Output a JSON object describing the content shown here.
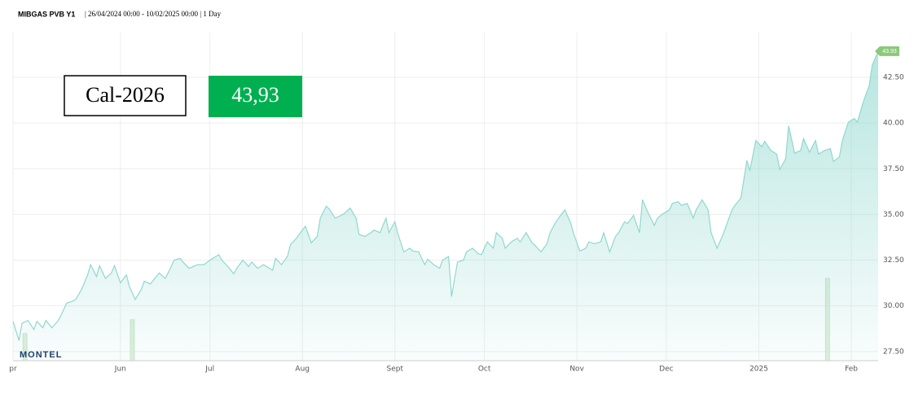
{
  "chart_data": {
    "type": "line",
    "title": "MIBGAS PVB Y1",
    "subtitle": "| 26/04/2024 00:00 - 10/02/2025 00:00 | 1 Day",
    "logo": "MONTEL",
    "product": "Cal-2026",
    "price": "43,93",
    "last_label": "43.93",
    "color": "#8fd8cf",
    "grid": true,
    "xlim": [
      0,
      290
    ],
    "ylim": [
      27.0,
      44.95
    ],
    "xticks": [
      {
        "value": 0,
        "label": "pr"
      },
      {
        "value": 36,
        "label": "Jun"
      },
      {
        "value": 66,
        "label": "Jul"
      },
      {
        "value": 97,
        "label": "Aug"
      },
      {
        "value": 128,
        "label": "Sept"
      },
      {
        "value": 158,
        "label": "Oct"
      },
      {
        "value": 189,
        "label": "Nov"
      },
      {
        "value": 219,
        "label": "Dec"
      },
      {
        "value": 250,
        "label": "2025"
      },
      {
        "value": 281,
        "label": "Feb"
      }
    ],
    "yticks": [
      {
        "value": 27.5,
        "label": "27.50"
      },
      {
        "value": 30,
        "label": "30.00"
      },
      {
        "value": 32.5,
        "label": "32.50"
      },
      {
        "value": 35,
        "label": "35.00"
      },
      {
        "value": 37.5,
        "label": "37.50"
      },
      {
        "value": 40,
        "label": "40.00"
      },
      {
        "value": 42.5,
        "label": "42.50"
      }
    ],
    "x": [
      0,
      2,
      3,
      5,
      7,
      8,
      10,
      11,
      13,
      15,
      16,
      18,
      20,
      21,
      23,
      25,
      26,
      28,
      29,
      31,
      33,
      34,
      36,
      38,
      39,
      41,
      43,
      44,
      46,
      48,
      49,
      51,
      52,
      54,
      56,
      57,
      59,
      61,
      62,
      64,
      66,
      67,
      69,
      70,
      72,
      74,
      75,
      77,
      79,
      80,
      82,
      84,
      85,
      87,
      88,
      90,
      92,
      93,
      95,
      97,
      98,
      100,
      102,
      103,
      105,
      106,
      108,
      110,
      111,
      113,
      115,
      116,
      118,
      120,
      121,
      123,
      125,
      126,
      128,
      129,
      131,
      133,
      134,
      136,
      138,
      139,
      141,
      143,
      144,
      146,
      147,
      149,
      151,
      152,
      154,
      156,
      157,
      159,
      161,
      162,
      164,
      165,
      167,
      169,
      170,
      172,
      174,
      175,
      177,
      179,
      180,
      182,
      184,
      185,
      187,
      188,
      190,
      192,
      193,
      195,
      197,
      198,
      200,
      202,
      203,
      205,
      206,
      208,
      210,
      211,
      213,
      215,
      216,
      218,
      220,
      221,
      223,
      224,
      226,
      228,
      229,
      231,
      233,
      234,
      236,
      238,
      239,
      241,
      242,
      244,
      246,
      247,
      249,
      251,
      252,
      254,
      256,
      257,
      259,
      260,
      262,
      264,
      265,
      267,
      269,
      270,
      272,
      274,
      275,
      277,
      278,
      280,
      282,
      283,
      285,
      287,
      288,
      290
    ],
    "values": [
      29.15,
      28.1,
      29.05,
      29.2,
      28.7,
      29.15,
      28.8,
      29.2,
      28.8,
      29.15,
      29.45,
      30.15,
      30.25,
      30.35,
      30.9,
      31.7,
      32.25,
      31.6,
      32.2,
      31.5,
      31.8,
      32.2,
      31.25,
      31.7,
      31.05,
      30.35,
      30.9,
      31.35,
      31.2,
      31.6,
      31.8,
      31.5,
      31.8,
      32.5,
      32.6,
      32.4,
      32.05,
      32.2,
      32.25,
      32.25,
      32.5,
      32.6,
      32.8,
      32.5,
      32.15,
      31.75,
      32.05,
      32.5,
      32.15,
      32.4,
      32.05,
      32.25,
      32.15,
      31.95,
      32.6,
      32.25,
      32.7,
      33.35,
      33.7,
      34.15,
      34.35,
      33.45,
      33.8,
      34.8,
      35.45,
      35.3,
      34.8,
      34.95,
      35.05,
      35.35,
      34.8,
      33.9,
      33.8,
      34.0,
      34.15,
      34.0,
      34.8,
      34.0,
      34.6,
      33.95,
      32.95,
      33.15,
      33.0,
      32.95,
      32.25,
      32.55,
      32.25,
      32.05,
      32.5,
      32.7,
      30.5,
      32.4,
      32.5,
      32.95,
      33.15,
      32.85,
      32.8,
      33.5,
      33.15,
      34.0,
      33.7,
      33.15,
      33.5,
      33.7,
      33.5,
      34.0,
      33.45,
      33.3,
      32.95,
      33.4,
      34.0,
      34.6,
      35.05,
      35.25,
      34.5,
      33.9,
      33.0,
      33.15,
      33.5,
      33.4,
      33.5,
      34.0,
      32.95,
      33.8,
      34.0,
      34.6,
      34.5,
      34.95,
      34.0,
      35.8,
      35.05,
      34.4,
      34.8,
      35.05,
      35.25,
      35.6,
      35.7,
      35.5,
      35.6,
      34.8,
      35.25,
      35.8,
      35.25,
      34.0,
      33.15,
      33.9,
      34.35,
      35.25,
      35.5,
      35.9,
      37.95,
      37.4,
      39.05,
      38.7,
      39.0,
      38.5,
      38.3,
      37.45,
      38.05,
      39.85,
      38.35,
      38.5,
      39.15,
      38.4,
      39.05,
      38.3,
      38.5,
      38.6,
      37.9,
      38.15,
      39.05,
      40.05,
      40.25,
      40.05,
      41.15,
      42.05,
      43.15,
      43.93
    ],
    "bars": {
      "color": "#dfeedd",
      "x": [
        4,
        40,
        273
      ],
      "values": [
        28.48,
        29.24,
        31.5
      ]
    }
  }
}
